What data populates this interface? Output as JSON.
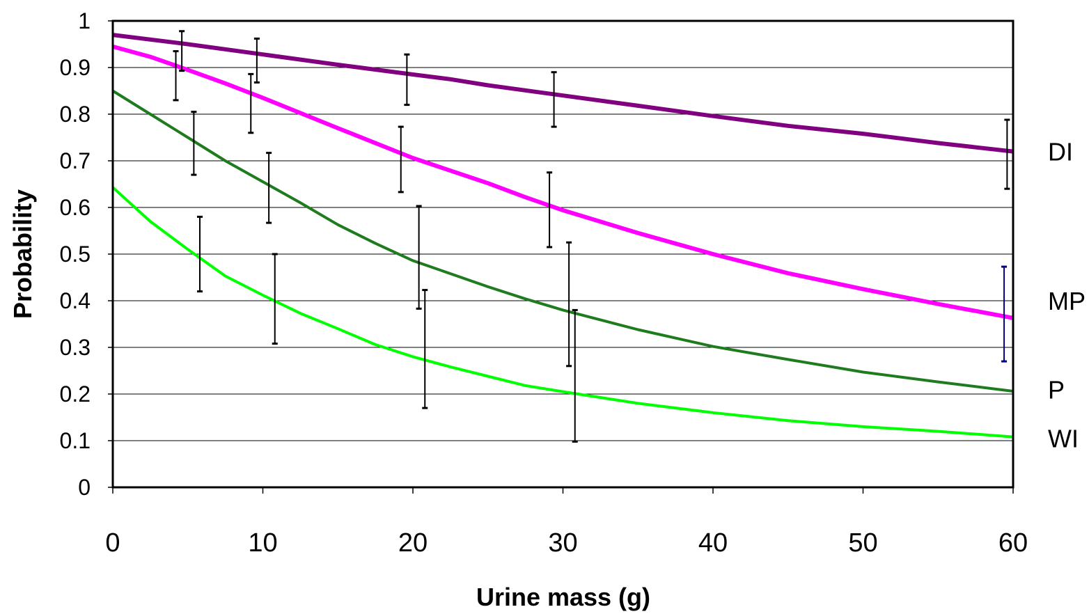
{
  "chart_data": {
    "type": "line",
    "title": "",
    "xlabel": "Urine mass (g)",
    "ylabel": "Probability",
    "xlim": [
      0,
      60
    ],
    "ylim": [
      0,
      1
    ],
    "x_ticks": [
      0,
      10,
      20,
      30,
      40,
      50,
      60
    ],
    "y_ticks": [
      0,
      0.1,
      0.2,
      0.3,
      0.4,
      0.5,
      0.6,
      0.7,
      0.8,
      0.9,
      1
    ],
    "grid": "horizontal",
    "legend": "inline labels at right end of lines",
    "series": [
      {
        "name": "DI",
        "color": "#800080",
        "x": [
          0,
          5,
          10,
          15,
          20,
          22.5,
          25,
          30,
          35,
          40,
          45,
          50,
          55,
          60
        ],
        "y": [
          0.97,
          0.95,
          0.928,
          0.906,
          0.885,
          0.875,
          0.862,
          0.84,
          0.818,
          0.796,
          0.775,
          0.758,
          0.738,
          0.72
        ],
        "error_bars": [
          {
            "x": 4.2,
            "low": 0.83,
            "high": 0.935
          },
          {
            "x": 4.6,
            "low": 0.893,
            "high": 0.978
          },
          {
            "x": 9.6,
            "low": 0.868,
            "high": 0.962
          },
          {
            "x": 19.6,
            "low": 0.82,
            "high": 0.928
          },
          {
            "x": 29.4,
            "low": 0.773,
            "high": 0.89
          },
          {
            "x": 59.6,
            "low": 0.64,
            "high": 0.788
          }
        ]
      },
      {
        "name": "MP",
        "color": "#ff00ff",
        "x": [
          0,
          2.5,
          5,
          7.5,
          10,
          15,
          20,
          25,
          27.5,
          30,
          35,
          40,
          45,
          50,
          55,
          60
        ],
        "y": [
          0.945,
          0.923,
          0.895,
          0.866,
          0.835,
          0.77,
          0.706,
          0.652,
          0.622,
          0.594,
          0.545,
          0.5,
          0.459,
          0.425,
          0.393,
          0.363
        ],
        "error_bars": [
          {
            "x": 9.2,
            "low": 0.76,
            "high": 0.886
          },
          {
            "x": 19.2,
            "low": 0.633,
            "high": 0.773
          },
          {
            "x": 29.1,
            "low": 0.515,
            "high": 0.675
          },
          {
            "x": 59.4,
            "low": 0.27,
            "high": 0.473,
            "color": "#000080"
          }
        ]
      },
      {
        "name": "P",
        "color": "#1e7b1e",
        "x": [
          0,
          2.5,
          5,
          7.5,
          10,
          12.5,
          15,
          17.5,
          20,
          22.5,
          25,
          27.5,
          30,
          35,
          40,
          45,
          50,
          55,
          60
        ],
        "y": [
          0.85,
          0.8,
          0.75,
          0.7,
          0.655,
          0.61,
          0.563,
          0.523,
          0.486,
          0.458,
          0.43,
          0.404,
          0.38,
          0.338,
          0.302,
          0.274,
          0.247,
          0.226,
          0.206
        ],
        "error_bars": [
          {
            "x": 5.4,
            "low": 0.67,
            "high": 0.805
          },
          {
            "x": 10.4,
            "low": 0.567,
            "high": 0.717
          },
          {
            "x": 20.4,
            "low": 0.383,
            "high": 0.603
          },
          {
            "x": 30.4,
            "low": 0.26,
            "high": 0.525
          }
        ]
      },
      {
        "name": "WI",
        "color": "#00ff00",
        "x": [
          0,
          2.5,
          5,
          7.5,
          10,
          12.5,
          15,
          17.5,
          20,
          22.5,
          25,
          27.5,
          30,
          35,
          40,
          45,
          50,
          55,
          60
        ],
        "y": [
          0.643,
          0.57,
          0.51,
          0.453,
          0.412,
          0.373,
          0.34,
          0.306,
          0.28,
          0.258,
          0.238,
          0.218,
          0.205,
          0.18,
          0.16,
          0.143,
          0.13,
          0.12,
          0.108
        ],
        "error_bars": [
          {
            "x": 5.8,
            "low": 0.42,
            "high": 0.58
          },
          {
            "x": 10.8,
            "low": 0.308,
            "high": 0.5
          },
          {
            "x": 20.8,
            "low": 0.17,
            "high": 0.423
          },
          {
            "x": 30.8,
            "low": 0.098,
            "high": 0.38
          }
        ]
      }
    ]
  }
}
